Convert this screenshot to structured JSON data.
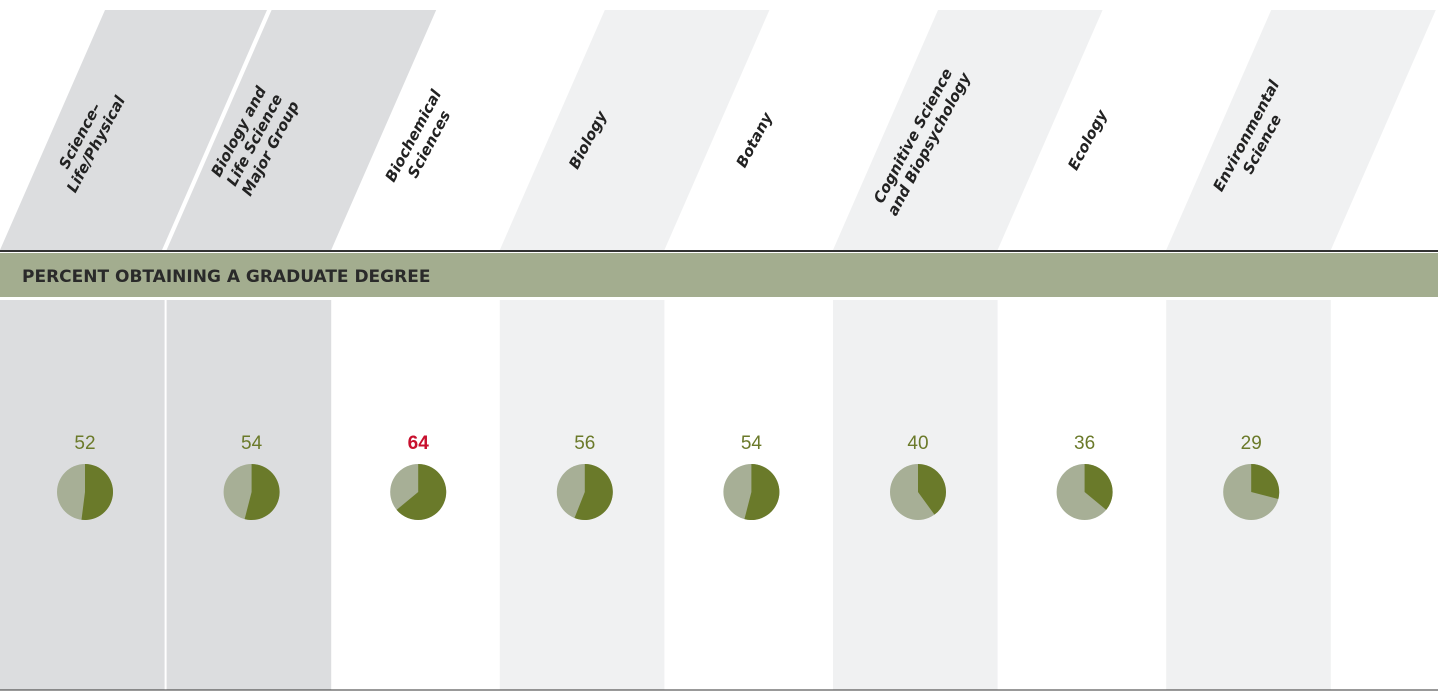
{
  "chart_data": {
    "type": "pie",
    "title": "PERCENT OBTAINING A GRADUATE DEGREE",
    "categories": [
      [
        "Science–",
        "Life/Physical"
      ],
      [
        "Biology and",
        "Life Science",
        "Major Group"
      ],
      [
        "Biochemical",
        "Sciences"
      ],
      [
        "Biology"
      ],
      [
        "Botany"
      ],
      [
        "Cognitive Science",
        "and Biopsychology"
      ],
      [
        "Ecology"
      ],
      [
        "Environmental",
        "Science"
      ]
    ],
    "values": [
      52,
      54,
      64,
      56,
      54,
      40,
      36,
      29
    ],
    "column_colors": [
      "#dcdddf",
      "#dcdddf",
      "#ffffff",
      "#f0f1f2",
      "#ffffff",
      "#f0f1f2",
      "#ffffff",
      "#f0f1f2"
    ],
    "color": "#6a7a2a",
    "remainder_color": "#a7af96",
    "label_color": "#6b7a2a",
    "highlight": "Biochemical Sciences",
    "highlight_color": "#c8102e",
    "band_color": "#a3ad8f"
  }
}
